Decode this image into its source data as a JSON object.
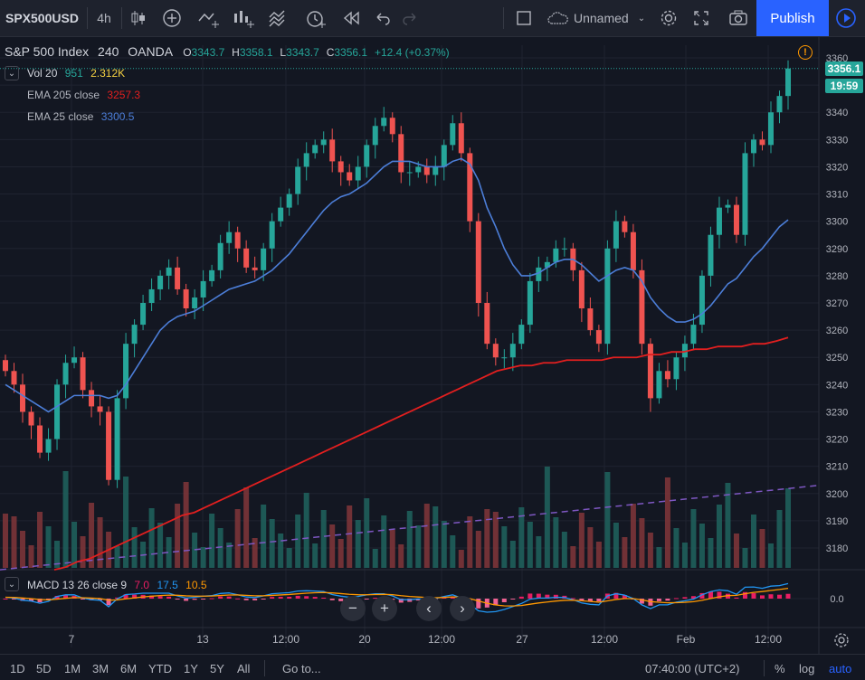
{
  "toolbar": {
    "symbol": "SPX500USD",
    "interval": "4h",
    "layout_name": "Unnamed",
    "publish_label": "Publish"
  },
  "legend": {
    "title": "S&P 500 Index",
    "interval": "240",
    "exchange": "OANDA",
    "open_label": "O",
    "open": "3343.7",
    "high_label": "H",
    "high": "3358.1",
    "low_label": "L",
    "low": "3343.7",
    "close_label": "C",
    "close": "3356.1",
    "change": "+12.4 (+0.37%)",
    "vol_label": "Vol 20",
    "vol_value": "951",
    "vol_ma": "2.312K",
    "ema205_label": "EMA 205 close",
    "ema205_value": "3257.3",
    "ema25_label": "EMA 25 close",
    "ema25_value": "3300.5",
    "macd_label": "MACD 13 26 close 9",
    "macd_hist": "7.0",
    "macd_line": "17.5",
    "macd_signal": "10.5"
  },
  "price_tag": {
    "last": "3356.1",
    "countdown": "19:59"
  },
  "colors": {
    "up": "#26a69a",
    "down": "#ef5350",
    "ema25": "#4c7ed8",
    "ema205": "#e21f1f",
    "vol_ma": "#7e57c2",
    "macd_line": "#2196f3",
    "macd_signal": "#ff9800",
    "macd_hist": "#e91e63"
  },
  "chart_data": {
    "type": "candlestick",
    "title": "S&P 500 Index",
    "ylim": [
      3170,
      3365
    ],
    "y_ticks": [
      3360,
      3350,
      3340,
      3330,
      3320,
      3310,
      3300,
      3290,
      3280,
      3270,
      3260,
      3250,
      3240,
      3230,
      3220,
      3210,
      3200,
      3190,
      3180
    ],
    "x_ticks": [
      "7",
      "13",
      "12:00",
      "20",
      "12:00",
      "27",
      "12:00",
      "Feb",
      "12:00"
    ],
    "macd_y_ticks": [
      "0.0"
    ],
    "close_series": [
      3245,
      3240,
      3230,
      3225,
      3215,
      3220,
      3240,
      3248,
      3250,
      3238,
      3232,
      3230,
      3205,
      3235,
      3255,
      3262,
      3270,
      3275,
      3280,
      3283,
      3275,
      3268,
      3272,
      3278,
      3282,
      3292,
      3296,
      3290,
      3283,
      3282,
      3290,
      3300,
      3305,
      3310,
      3320,
      3325,
      3328,
      3330,
      3322,
      3318,
      3315,
      3320,
      3328,
      3335,
      3338,
      3332,
      3318,
      3318,
      3320,
      3317,
      3320,
      3328,
      3336,
      3325,
      3300,
      3270,
      3255,
      3250,
      3250,
      3255,
      3262,
      3278,
      3283,
      3285,
      3290,
      3290,
      3282,
      3268,
      3260,
      3255,
      3290,
      3300,
      3296,
      3282,
      3255,
      3235,
      3245,
      3242,
      3250,
      3255,
      3262,
      3280,
      3295,
      3305,
      3306,
      3295,
      3325,
      3330,
      3328,
      3340,
      3346,
      3356.1
    ],
    "ema25_series": [
      3240,
      3238,
      3236,
      3234,
      3232,
      3230,
      3232,
      3234,
      3236,
      3236,
      3236,
      3236,
      3235,
      3236,
      3240,
      3245,
      3250,
      3255,
      3260,
      3263,
      3265,
      3266,
      3267,
      3269,
      3271,
      3273,
      3275,
      3276,
      3277,
      3278,
      3280,
      3282,
      3285,
      3288,
      3292,
      3296,
      3300,
      3304,
      3307,
      3309,
      3310,
      3312,
      3314,
      3317,
      3320,
      3322,
      3322,
      3322,
      3321,
      3320,
      3320,
      3320,
      3322,
      3323,
      3321,
      3315,
      3305,
      3298,
      3290,
      3284,
      3280,
      3280,
      3281,
      3283,
      3285,
      3286,
      3286,
      3284,
      3281,
      3278,
      3280,
      3282,
      3283,
      3282,
      3278,
      3272,
      3268,
      3265,
      3263,
      3263,
      3264,
      3266,
      3269,
      3273,
      3277,
      3279,
      3283,
      3287,
      3290,
      3294,
      3298,
      3300.5
    ],
    "ema205_series": [
      3172,
      3173,
      3175,
      3176,
      3178,
      3180,
      3182,
      3184,
      3186,
      3188,
      3190,
      3192,
      3193,
      3195,
      3197,
      3199,
      3201,
      3203,
      3205,
      3207,
      3209,
      3211,
      3213,
      3215,
      3217,
      3219,
      3221,
      3223,
      3225,
      3227,
      3229,
      3231,
      3233,
      3235,
      3237,
      3239,
      3241,
      3243,
      3245,
      3246,
      3247,
      3247,
      3248,
      3248,
      3249,
      3249,
      3249,
      3249,
      3250,
      3250,
      3250,
      3251,
      3251,
      3252,
      3252,
      3253,
      3253,
      3254,
      3254,
      3254,
      3255,
      3255,
      3256,
      3257.3
    ],
    "volume_ma": {
      "start": 3172,
      "end": 3203,
      "unit": "price-scale"
    },
    "macd": {
      "line_last": 17.5,
      "signal_last": 10.5,
      "hist_last": 7.0
    }
  }
}
